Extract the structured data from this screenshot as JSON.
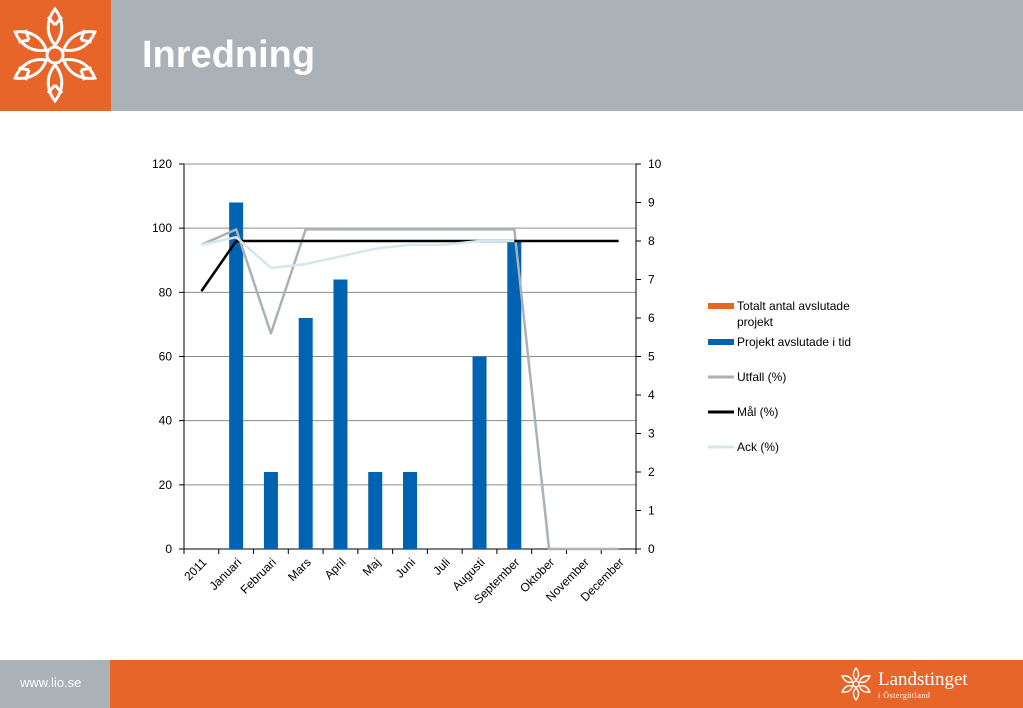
{
  "header": {
    "title": "Inredning"
  },
  "footer": {
    "url": "www.lio.se",
    "brand_name": "Landstinget",
    "brand_sub": "i Östergötland"
  },
  "icons": {
    "logo": "snowflake-flower-icon",
    "brand_logo": "snowflake-flower-icon"
  },
  "colors": {
    "orange": "#e8652a",
    "grey_header": "#aab2b7",
    "bar_total": "#e8652a",
    "bar_in_time": "#0063b1",
    "utfall": "#aab2b7",
    "mal": "#000000",
    "ack": "#d4e7ec"
  },
  "chart_data": {
    "type": "bar",
    "categories": [
      "2011",
      "Januari",
      "Februari",
      "Mars",
      "April",
      "Maj",
      "Juni",
      "Juli",
      "Augusti",
      "September",
      "Oktober",
      "November",
      "December"
    ],
    "series": [
      {
        "name": "Totalt antal avslutade projekt",
        "type": "bar",
        "axis": "left",
        "values": [
          null,
          0,
          0,
          0,
          0,
          0,
          0,
          0,
          0,
          0,
          0,
          0,
          0
        ]
      },
      {
        "name": "Projekt avslutade i tid",
        "type": "bar",
        "axis": "left",
        "values": [
          null,
          108,
          24,
          72,
          84,
          24,
          24,
          0,
          60,
          96,
          0,
          0,
          0
        ]
      },
      {
        "name": "Utfall (%)",
        "type": "line",
        "axis": "right",
        "values": [
          7.9,
          8.3,
          5.6,
          8.3,
          8.3,
          8.3,
          8.3,
          8.3,
          8.3,
          8.3,
          0,
          0,
          0
        ]
      },
      {
        "name": "Mål (%)",
        "type": "line",
        "axis": "right",
        "values": [
          6.7,
          8,
          8,
          8,
          8,
          8,
          8,
          8,
          8,
          8,
          8,
          8,
          8
        ]
      },
      {
        "name": "Ack (%)",
        "type": "line",
        "axis": "right",
        "values": [
          7.9,
          8.1,
          7.3,
          7.4,
          7.6,
          7.8,
          7.9,
          7.9,
          8.0,
          8.0,
          null,
          null,
          null
        ]
      }
    ],
    "y_left": {
      "ylim": [
        0,
        120
      ],
      "ticks": [
        "0",
        "20",
        "40",
        "60",
        "80",
        "100",
        "120"
      ]
    },
    "y_right": {
      "ylim": [
        0,
        10
      ],
      "ticks": [
        "0",
        "1",
        "2",
        "3",
        "4",
        "5",
        "6",
        "7",
        "8",
        "9",
        "10"
      ]
    },
    "grid": true,
    "legend": "right"
  }
}
